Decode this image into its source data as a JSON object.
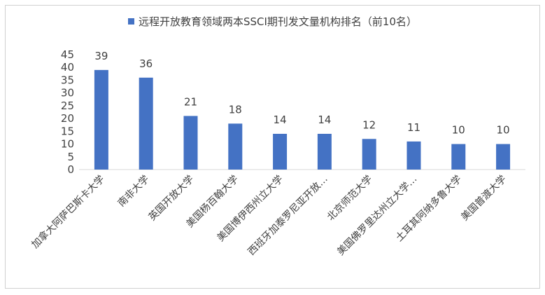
{
  "chart_data": {
    "type": "bar",
    "legend_position": "top",
    "series": [
      {
        "name": "远程开放教育领域两本SSCI期刊发文量机构排名（前10名）",
        "color": "#4472C4",
        "values": [
          39,
          36,
          21,
          18,
          14,
          14,
          12,
          11,
          10,
          10
        ]
      }
    ],
    "categories": [
      "加拿大阿萨巴斯卡大学",
      "南非大学",
      "英国开放大学",
      "美国杨百翰大学",
      "美国博伊西州立大学",
      "西班牙加泰罗尼亚开放…",
      "北京师范大学",
      "美国佛罗里达州立大学…",
      "土耳其阿纳多鲁大学",
      "美国普渡大学"
    ],
    "y_ticks": [
      "0",
      "5",
      "10",
      "15",
      "20",
      "25",
      "30",
      "35",
      "40",
      "45"
    ],
    "ylim": [
      0,
      45
    ],
    "grid": false,
    "data_labels": true
  }
}
